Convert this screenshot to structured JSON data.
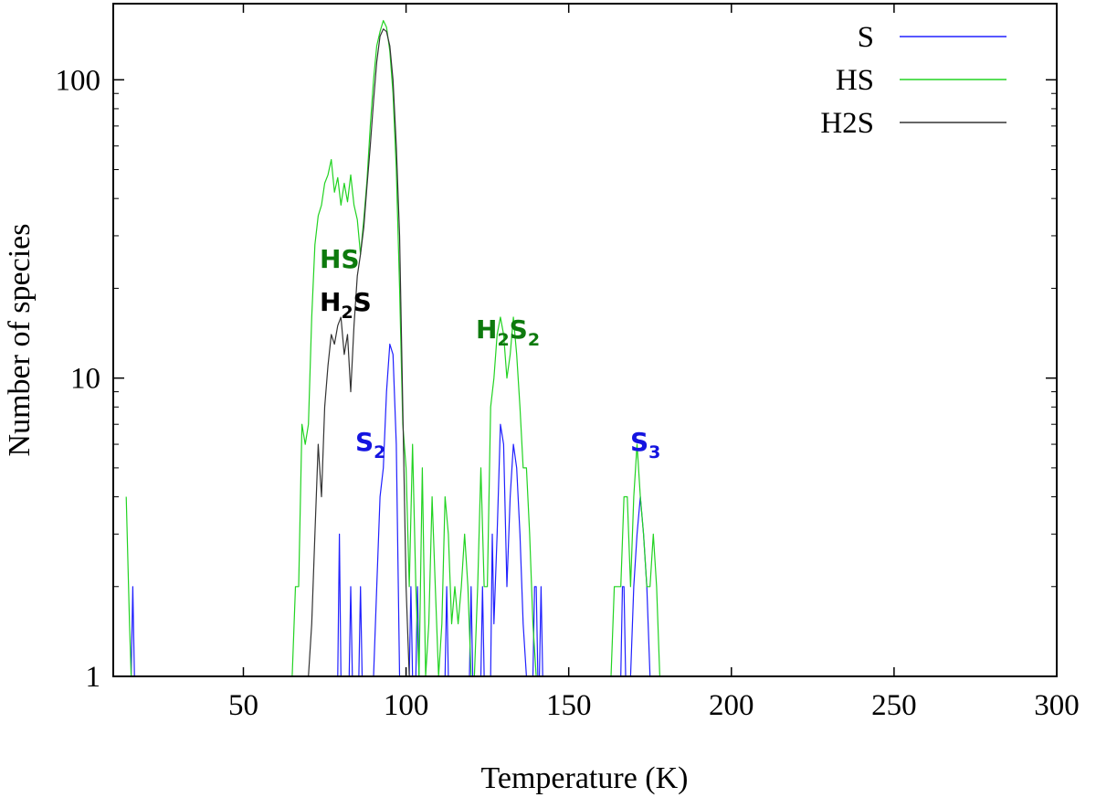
{
  "chart_data": {
    "type": "line",
    "xlabel": "Temperature (K)",
    "ylabel": "Number of species",
    "xlim": [
      10,
      300
    ],
    "ylim": [
      1,
      180
    ],
    "yscale": "log",
    "grid": false,
    "legend_position": "top-right",
    "x_ticks": [
      50,
      100,
      150,
      200,
      250,
      300
    ],
    "x_tick_labels": [
      "50",
      "100",
      "150",
      "200",
      "250",
      "300"
    ],
    "y_ticks": [
      1,
      10,
      100
    ],
    "y_tick_labels": [
      "1",
      "10",
      "100"
    ],
    "series": [
      {
        "name": "S",
        "color": "#2020ff",
        "points": [
          [
            15.5,
            1
          ],
          [
            16,
            2
          ],
          [
            16.5,
            1
          ],
          [
            79,
            1
          ],
          [
            79.5,
            3
          ],
          [
            80,
            1
          ],
          [
            82.5,
            1
          ],
          [
            83,
            2
          ],
          [
            83.5,
            1
          ],
          [
            85.5,
            1
          ],
          [
            86,
            2
          ],
          [
            86.5,
            1
          ],
          [
            90,
            1
          ],
          [
            91,
            2
          ],
          [
            92,
            4
          ],
          [
            93,
            5
          ],
          [
            94,
            9
          ],
          [
            95,
            13
          ],
          [
            96,
            12
          ],
          [
            97,
            6
          ],
          [
            98,
            1
          ],
          [
            101,
            1
          ],
          [
            101.5,
            2
          ],
          [
            102,
            1
          ],
          [
            103,
            1
          ],
          [
            103.5,
            2
          ],
          [
            104,
            1
          ],
          [
            112,
            1
          ],
          [
            112.5,
            2
          ],
          [
            113,
            1
          ],
          [
            119.5,
            1
          ],
          [
            120,
            2
          ],
          [
            120.5,
            1
          ],
          [
            123,
            1
          ],
          [
            123.5,
            2
          ],
          [
            124,
            1
          ],
          [
            126,
            1
          ],
          [
            126.5,
            3
          ],
          [
            127,
            1.5
          ],
          [
            128,
            3
          ],
          [
            129,
            7
          ],
          [
            130,
            6
          ],
          [
            131,
            2
          ],
          [
            132,
            4
          ],
          [
            133,
            6
          ],
          [
            134,
            5
          ],
          [
            135,
            3
          ],
          [
            136,
            1.5
          ],
          [
            137,
            1
          ],
          [
            139,
            1
          ],
          [
            139.5,
            2
          ],
          [
            140,
            2
          ],
          [
            140.5,
            1
          ],
          [
            141,
            1
          ],
          [
            141.5,
            2
          ],
          [
            142,
            1
          ],
          [
            166,
            1
          ],
          [
            166.5,
            2
          ],
          [
            167,
            2
          ],
          [
            167.5,
            1
          ],
          [
            169,
            1
          ],
          [
            170,
            2
          ],
          [
            171,
            3
          ],
          [
            172,
            4
          ],
          [
            173,
            3
          ],
          [
            174,
            2
          ],
          [
            175,
            1
          ]
        ]
      },
      {
        "name": "HS",
        "color": "#22d322",
        "points": [
          [
            14,
            4
          ],
          [
            15,
            1.5
          ],
          [
            15.5,
            1
          ],
          [
            65,
            1
          ],
          [
            66,
            2
          ],
          [
            67,
            2
          ],
          [
            68,
            7
          ],
          [
            69,
            6
          ],
          [
            70,
            7
          ],
          [
            71,
            16
          ],
          [
            72,
            28
          ],
          [
            73,
            35
          ],
          [
            74,
            38
          ],
          [
            75,
            45
          ],
          [
            76,
            48
          ],
          [
            77,
            54
          ],
          [
            78,
            42
          ],
          [
            79,
            47
          ],
          [
            80,
            38
          ],
          [
            81,
            45
          ],
          [
            82,
            39
          ],
          [
            83,
            48
          ],
          [
            84,
            38
          ],
          [
            85,
            34
          ],
          [
            86,
            26
          ],
          [
            87,
            34
          ],
          [
            88,
            46
          ],
          [
            89,
            70
          ],
          [
            90,
            100
          ],
          [
            91,
            130
          ],
          [
            92,
            145
          ],
          [
            93,
            158
          ],
          [
            94,
            150
          ],
          [
            95,
            125
          ],
          [
            96,
            90
          ],
          [
            97,
            50
          ],
          [
            98,
            20
          ],
          [
            99,
            7
          ],
          [
            100,
            5
          ],
          [
            101,
            2
          ],
          [
            102,
            6
          ],
          [
            103,
            2
          ],
          [
            104,
            1
          ],
          [
            105,
            5
          ],
          [
            106,
            1
          ],
          [
            107,
            1.5
          ],
          [
            108,
            4
          ],
          [
            109,
            2
          ],
          [
            110,
            1
          ],
          [
            111,
            1.5
          ],
          [
            112,
            4
          ],
          [
            113,
            3
          ],
          [
            114,
            1.5
          ],
          [
            115,
            2
          ],
          [
            116,
            1.5
          ],
          [
            117,
            2
          ],
          [
            118,
            3
          ],
          [
            119,
            2
          ],
          [
            120,
            1
          ],
          [
            121,
            1
          ],
          [
            122,
            2
          ],
          [
            123,
            5
          ],
          [
            124,
            2
          ],
          [
            125,
            2
          ],
          [
            126,
            8
          ],
          [
            127,
            10
          ],
          [
            128,
            14
          ],
          [
            129,
            16
          ],
          [
            130,
            14
          ],
          [
            131,
            10
          ],
          [
            132,
            12
          ],
          [
            133,
            16
          ],
          [
            134,
            12
          ],
          [
            135,
            8
          ],
          [
            136,
            5
          ],
          [
            137,
            5
          ],
          [
            138,
            3
          ],
          [
            139,
            1.5
          ],
          [
            140,
            1
          ],
          [
            163,
            1
          ],
          [
            164,
            2
          ],
          [
            165,
            2
          ],
          [
            166,
            2
          ],
          [
            167,
            4
          ],
          [
            168,
            4
          ],
          [
            169,
            2
          ],
          [
            170,
            4
          ],
          [
            171,
            6
          ],
          [
            172,
            4
          ],
          [
            173,
            3
          ],
          [
            174,
            2
          ],
          [
            175,
            2
          ],
          [
            176,
            3
          ],
          [
            177,
            2
          ],
          [
            178,
            1
          ]
        ]
      },
      {
        "name": "H2S",
        "color": "#333333",
        "points": [
          [
            70,
            1
          ],
          [
            71,
            1.5
          ],
          [
            72,
            3
          ],
          [
            73,
            6
          ],
          [
            74,
            4
          ],
          [
            75,
            8
          ],
          [
            76,
            11
          ],
          [
            77,
            14
          ],
          [
            78,
            13
          ],
          [
            79,
            15
          ],
          [
            80,
            16
          ],
          [
            81,
            12
          ],
          [
            82,
            14
          ],
          [
            83,
            9
          ],
          [
            84,
            15
          ],
          [
            85,
            22
          ],
          [
            86,
            26
          ],
          [
            87,
            32
          ],
          [
            88,
            44
          ],
          [
            89,
            60
          ],
          [
            90,
            85
          ],
          [
            91,
            115
          ],
          [
            92,
            140
          ],
          [
            93,
            148
          ],
          [
            94,
            145
          ],
          [
            95,
            130
          ],
          [
            96,
            100
          ],
          [
            97,
            60
          ],
          [
            98,
            30
          ],
          [
            99,
            8
          ],
          [
            100,
            2
          ],
          [
            101,
            1
          ]
        ]
      }
    ]
  },
  "annotations": {
    "hs": {
      "main": "HS",
      "color": "#0d7a0d"
    },
    "h2s": {
      "p1": "H",
      "sub1": "2",
      "p2": "S",
      "color": "#000000"
    },
    "h2s2": {
      "p1": "H",
      "sub1": "2",
      "p2": "S",
      "sub2": "2",
      "color": "#0d7a0d"
    },
    "s2": {
      "p1": "S",
      "sub1": "2",
      "color": "#1414e0"
    },
    "s3": {
      "p1": "S",
      "sub1": "3",
      "color": "#1414e0"
    }
  }
}
